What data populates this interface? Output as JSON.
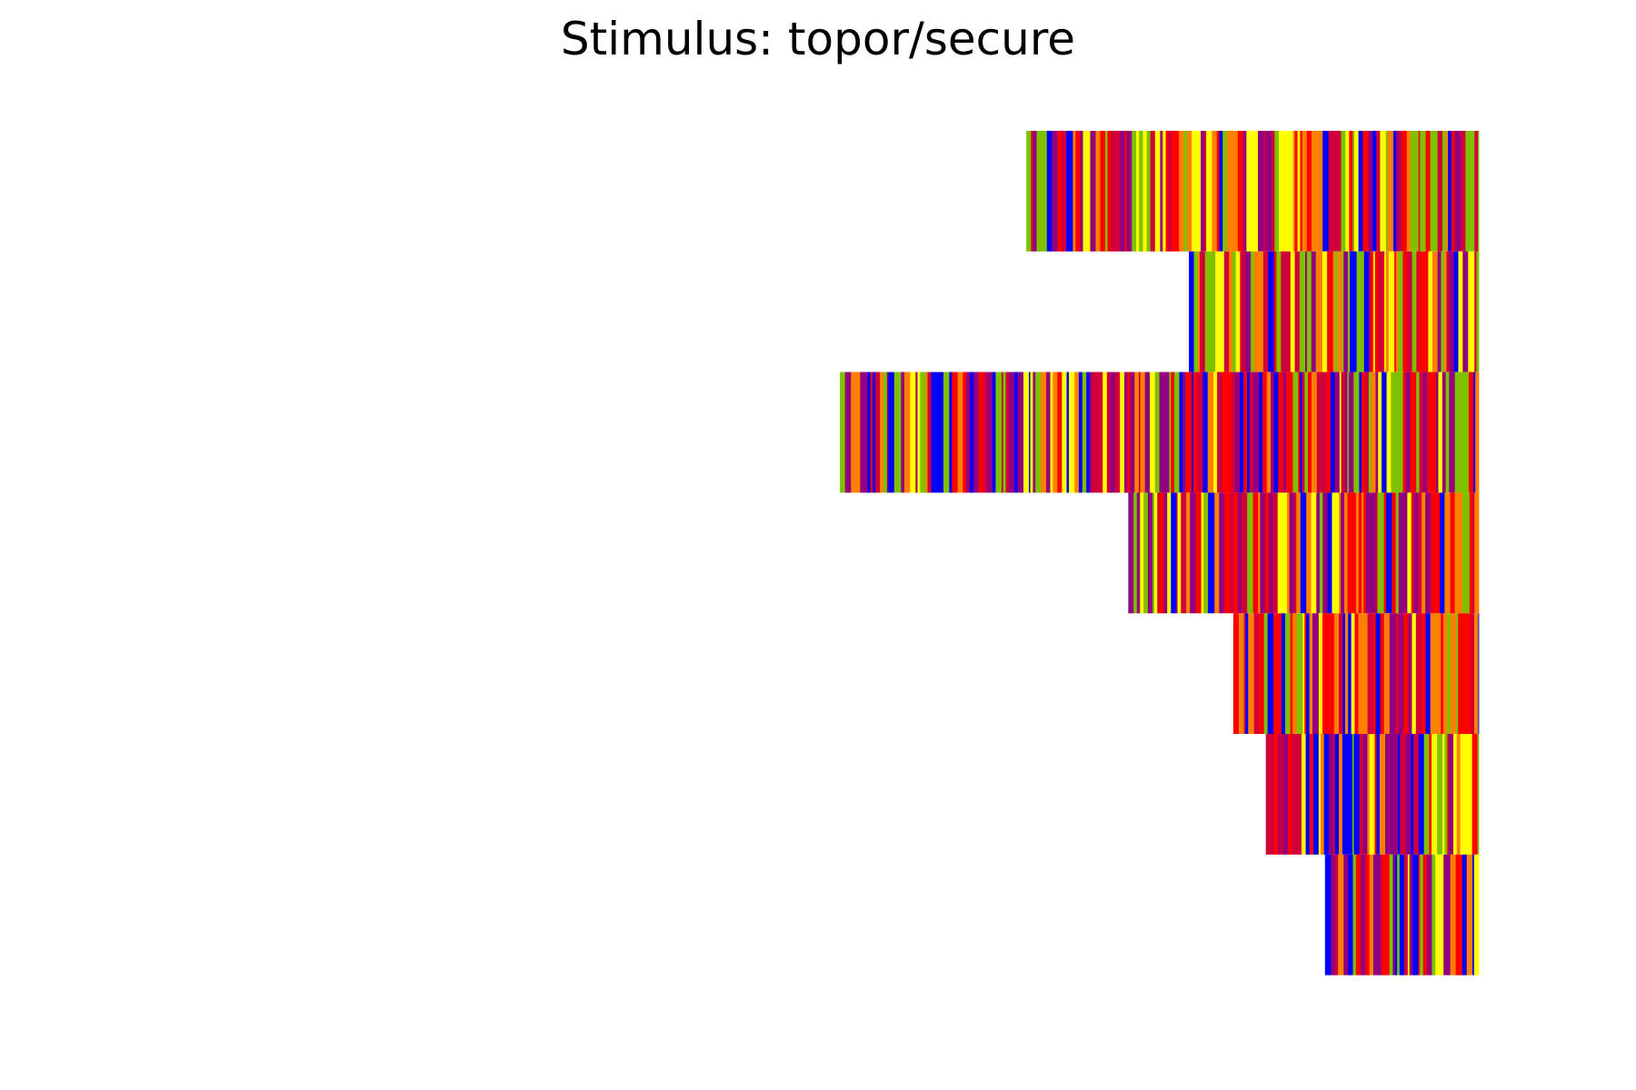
{
  "chart_data": {
    "type": "heatmap",
    "title": "Stimulus: topor/secure",
    "xlabel": "",
    "ylabel": "",
    "axes_visible": false,
    "grid": false,
    "legend": "none",
    "xlim": [
      -1.0,
      0.0
    ],
    "row_count": 7,
    "rows": [
      {
        "row": 1,
        "x_start": -0.306,
        "x_end": 0.0,
        "dominant_colors": [
          "green",
          "orange",
          "yellow",
          "red",
          "blue",
          "purple"
        ]
      },
      {
        "row": 2,
        "x_start": -0.196,
        "x_end": 0.0,
        "dominant_colors": [
          "yellow",
          "orange",
          "red",
          "green",
          "purple",
          "blue"
        ]
      },
      {
        "row": 3,
        "x_start": -0.432,
        "x_end": 0.0,
        "dominant_colors": [
          "purple",
          "red",
          "blue",
          "green",
          "yellow",
          "orange"
        ]
      },
      {
        "row": 4,
        "x_start": -0.237,
        "x_end": 0.0,
        "dominant_colors": [
          "red",
          "orange",
          "purple",
          "yellow",
          "green",
          "blue"
        ]
      },
      {
        "row": 5,
        "x_start": -0.166,
        "x_end": 0.0,
        "dominant_colors": [
          "red",
          "orange",
          "blue",
          "purple",
          "green",
          "yellow"
        ]
      },
      {
        "row": 6,
        "x_start": -0.144,
        "x_end": 0.0,
        "dominant_colors": [
          "yellow",
          "purple",
          "red",
          "blue",
          "orange",
          "green"
        ]
      },
      {
        "row": 7,
        "x_start": -0.104,
        "x_end": 0.0,
        "dominant_colors": [
          "red",
          "orange",
          "purple",
          "yellow",
          "green",
          "blue"
        ]
      }
    ],
    "palette": {
      "red": "#ff0000",
      "orange": "#ff8000",
      "yellow": "#ffff00",
      "green": "#7fc000",
      "blue": "#0000ff",
      "purple": "#900080",
      "crimson": "#d0003a"
    }
  }
}
